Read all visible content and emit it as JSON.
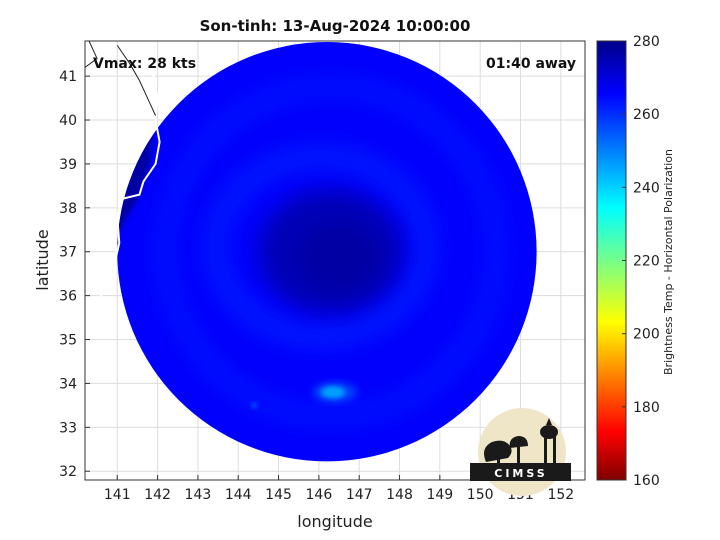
{
  "chart_data": {
    "type": "heatmap",
    "title": "Son-tinh: 13-Aug-2024 10:00:00",
    "xlabel": "longitude",
    "ylabel": "latitude",
    "xlim": [
      140.2,
      152.6
    ],
    "ylim": [
      31.8,
      41.8
    ],
    "x_ticks": [
      141,
      142,
      143,
      144,
      145,
      146,
      147,
      148,
      149,
      150,
      151,
      152
    ],
    "y_ticks": [
      32,
      33,
      34,
      35,
      36,
      37,
      38,
      39,
      40,
      41
    ],
    "grid": true,
    "annotations": {
      "vmax": "Vmax: 28 kts",
      "time_away": "01:40 away"
    },
    "colorbar": {
      "label": "Brightness Temp - Horizontal Polarization",
      "range": [
        160,
        280
      ],
      "ticks": [
        160,
        180,
        200,
        220,
        240,
        260,
        280
      ],
      "colormap": "jet"
    },
    "field": {
      "swath_center": [
        146.2,
        37.0
      ],
      "swath_radius_deg": 5.2,
      "background_value": 266,
      "storm_center": [
        146.3,
        37.0
      ],
      "storm_center_value": 276,
      "cold_feature_center": [
        146.4,
        33.8
      ],
      "cold_feature_min": 246,
      "land_region_value": 277
    },
    "logo_text": "CIMSS"
  }
}
